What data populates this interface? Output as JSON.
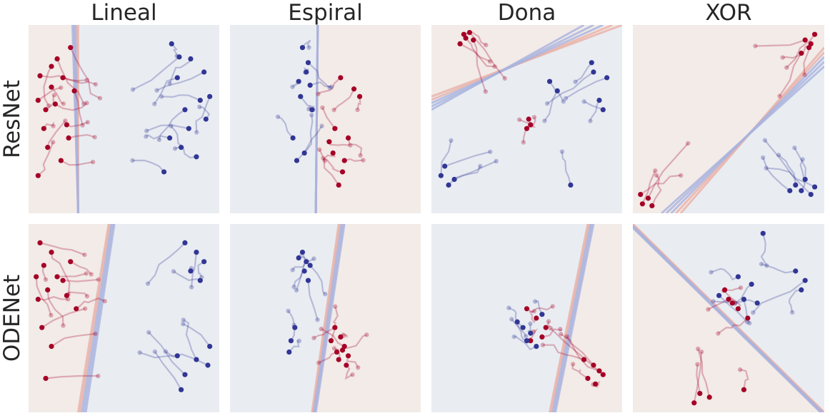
{
  "columns": [
    "Lineal",
    "Espiral",
    "Dona",
    "XOR"
  ],
  "rows": [
    "ResNet",
    "ODENet"
  ],
  "colors": {
    "class_red": "#a50026",
    "class_blue": "#313695",
    "region_red": "#f2ebe8",
    "region_blue": "#e9edf2",
    "boundary_red": "#e8b0a6",
    "boundary_blue": "#a9b3dd"
  },
  "chart_data": {
    "type": "scatter",
    "subtype": "small-multiples grid of 2-D decision regions with sample trajectories",
    "xlim": [
      0,
      1
    ],
    "ylim": [
      0,
      1
    ],
    "axes_visible": false,
    "grid": false,
    "panels": [
      {
        "row": "ResNet",
        "column": "Lineal",
        "boundary": [
          [
            0.26,
            1.0
          ],
          [
            0.26,
            0.0
          ],
          [
            0.23,
            1.0
          ],
          [
            0.26,
            0.0
          ]
        ],
        "red_points": [
          [
            0.15,
            0.82
          ],
          [
            0.22,
            0.88
          ],
          [
            0.05,
            0.6
          ],
          [
            0.12,
            0.67
          ],
          [
            0.08,
            0.45
          ],
          [
            0.18,
            0.72
          ],
          [
            0.1,
            0.35
          ],
          [
            0.14,
            0.58
          ],
          [
            0.2,
            0.47
          ],
          [
            0.05,
            0.2
          ],
          [
            0.17,
            0.28
          ],
          [
            0.24,
            0.65
          ],
          [
            0.12,
            0.78
          ],
          [
            0.09,
            0.55
          ],
          [
            0.21,
            0.4
          ],
          [
            0.06,
            0.73
          ]
        ],
        "blue_points": [
          [
            0.75,
            0.9
          ],
          [
            0.85,
            0.82
          ],
          [
            0.78,
            0.72
          ],
          [
            0.9,
            0.6
          ],
          [
            0.82,
            0.55
          ],
          [
            0.95,
            0.62
          ],
          [
            0.74,
            0.4
          ],
          [
            0.88,
            0.3
          ],
          [
            0.8,
            0.35
          ],
          [
            0.71,
            0.22
          ],
          [
            0.93,
            0.5
          ],
          [
            0.84,
            0.45
          ],
          [
            0.92,
            0.75
          ],
          [
            0.79,
            0.83
          ]
        ]
      },
      {
        "row": "ResNet",
        "column": "Espiral",
        "boundary": [
          [
            0.46,
            1.0
          ],
          [
            0.45,
            0.0
          ],
          [
            0.46,
            1.0
          ],
          [
            0.45,
            0.0
          ]
        ],
        "red_points": [
          [
            0.58,
            0.72
          ],
          [
            0.65,
            0.66
          ],
          [
            0.55,
            0.45
          ],
          [
            0.52,
            0.38
          ],
          [
            0.6,
            0.28
          ],
          [
            0.57,
            0.15
          ],
          [
            0.62,
            0.4
          ],
          [
            0.68,
            0.62
          ],
          [
            0.54,
            0.32
          ],
          [
            0.59,
            0.22
          ]
        ],
        "blue_points": [
          [
            0.38,
            0.88
          ],
          [
            0.4,
            0.75
          ],
          [
            0.42,
            0.68
          ],
          [
            0.37,
            0.62
          ],
          [
            0.43,
            0.55
          ],
          [
            0.33,
            0.4
          ],
          [
            0.39,
            0.32
          ],
          [
            0.35,
            0.28
          ],
          [
            0.41,
            0.8
          ],
          [
            0.36,
            0.7
          ]
        ]
      },
      {
        "row": "ResNet",
        "column": "Dona",
        "boundary": [
          [
            0.0,
            0.62
          ],
          [
            1.0,
            1.0
          ],
          [
            0.0,
            0.55
          ],
          [
            0.8,
            1.0
          ]
        ],
        "red_points": [
          [
            0.18,
            0.93
          ],
          [
            0.2,
            0.96
          ],
          [
            0.15,
            0.9
          ],
          [
            0.22,
            0.92
          ],
          [
            0.17,
            0.95
          ],
          [
            0.51,
            0.5
          ],
          [
            0.5,
            0.45
          ],
          [
            0.52,
            0.47
          ]
        ],
        "blue_points": [
          [
            0.07,
            0.25
          ],
          [
            0.12,
            0.18
          ],
          [
            0.05,
            0.2
          ],
          [
            0.09,
            0.15
          ],
          [
            0.85,
            0.75
          ],
          [
            0.92,
            0.72
          ],
          [
            0.88,
            0.6
          ],
          [
            0.9,
            0.55
          ],
          [
            0.84,
            0.8
          ],
          [
            0.62,
            0.7
          ],
          [
            0.66,
            0.65
          ],
          [
            0.73,
            0.15
          ]
        ]
      },
      {
        "row": "ResNet",
        "column": "XOR",
        "boundary": [
          [
            0.25,
            0.0
          ],
          [
            1.0,
            0.88
          ],
          [
            0.15,
            0.0
          ],
          [
            1.0,
            0.78
          ]
        ],
        "red_points": [
          [
            0.05,
            0.05
          ],
          [
            0.08,
            0.08
          ],
          [
            0.04,
            0.1
          ],
          [
            0.1,
            0.04
          ],
          [
            0.92,
            0.88
          ],
          [
            0.9,
            0.92
          ],
          [
            0.95,
            0.95
          ],
          [
            0.88,
            0.85
          ],
          [
            0.93,
            0.9
          ]
        ],
        "blue_points": [
          [
            0.85,
            0.15
          ],
          [
            0.88,
            0.12
          ],
          [
            0.9,
            0.18
          ],
          [
            0.93,
            0.1
          ],
          [
            0.95,
            0.14
          ],
          [
            0.82,
            0.12
          ]
        ]
      },
      {
        "row": "ODENet",
        "column": "Lineal",
        "boundary": [
          [
            0.42,
            1.0
          ],
          [
            0.26,
            0.0
          ],
          [
            0.45,
            1.0
          ],
          [
            0.3,
            0.0
          ]
        ],
        "red_points": [
          [
            0.06,
            0.9
          ],
          [
            0.12,
            0.85
          ],
          [
            0.08,
            0.78
          ],
          [
            0.15,
            0.72
          ],
          [
            0.05,
            0.6
          ],
          [
            0.1,
            0.65
          ],
          [
            0.18,
            0.7
          ],
          [
            0.07,
            0.45
          ],
          [
            0.12,
            0.35
          ],
          [
            0.22,
            0.8
          ],
          [
            0.2,
            0.62
          ],
          [
            0.04,
            0.72
          ],
          [
            0.25,
            0.55
          ],
          [
            0.09,
            0.18
          ]
        ],
        "blue_points": [
          [
            0.82,
            0.9
          ],
          [
            0.88,
            0.85
          ],
          [
            0.92,
            0.8
          ],
          [
            0.85,
            0.75
          ],
          [
            0.9,
            0.7
          ],
          [
            0.95,
            0.35
          ],
          [
            0.88,
            0.28
          ],
          [
            0.82,
            0.2
          ],
          [
            0.78,
            0.3
          ],
          [
            0.94,
            0.25
          ],
          [
            0.8,
            0.12
          ]
        ]
      },
      {
        "row": "ODENet",
        "column": "Espiral",
        "boundary": [
          [
            0.57,
            1.0
          ],
          [
            0.43,
            0.0
          ],
          [
            0.6,
            1.0
          ],
          [
            0.45,
            0.0
          ]
        ],
        "red_points": [
          [
            0.55,
            0.45
          ],
          [
            0.58,
            0.4
          ],
          [
            0.6,
            0.35
          ],
          [
            0.56,
            0.32
          ],
          [
            0.62,
            0.3
          ],
          [
            0.57,
            0.28
          ],
          [
            0.61,
            0.25
          ],
          [
            0.53,
            0.38
          ],
          [
            0.59,
            0.33
          ]
        ],
        "blue_points": [
          [
            0.38,
            0.85
          ],
          [
            0.4,
            0.8
          ],
          [
            0.42,
            0.78
          ],
          [
            0.36,
            0.82
          ],
          [
            0.39,
            0.75
          ],
          [
            0.34,
            0.45
          ],
          [
            0.32,
            0.38
          ],
          [
            0.31,
            0.32
          ],
          [
            0.41,
            0.7
          ]
        ]
      },
      {
        "row": "ODENet",
        "column": "Dona",
        "boundary": [
          [
            0.62,
            0.0
          ],
          [
            0.82,
            1.0
          ],
          [
            0.65,
            0.0
          ],
          [
            0.85,
            1.0
          ]
        ],
        "red_points": [
          [
            0.55,
            0.5
          ],
          [
            0.6,
            0.45
          ],
          [
            0.58,
            0.4
          ],
          [
            0.5,
            0.55
          ],
          [
            0.52,
            0.38
          ],
          [
            0.85,
            0.25
          ],
          [
            0.88,
            0.22
          ],
          [
            0.82,
            0.18
          ],
          [
            0.86,
            0.15
          ],
          [
            0.9,
            0.2
          ],
          [
            0.8,
            0.28
          ]
        ],
        "blue_points": [
          [
            0.48,
            0.45
          ],
          [
            0.52,
            0.42
          ],
          [
            0.45,
            0.48
          ],
          [
            0.55,
            0.35
          ],
          [
            0.58,
            0.52
          ],
          [
            0.5,
            0.38
          ]
        ]
      },
      {
        "row": "ODENet",
        "column": "XOR",
        "boundary": [
          [
            0.0,
            1.0
          ],
          [
            1.0,
            0.0
          ],
          [
            0.0,
            0.98
          ],
          [
            0.98,
            0.0
          ]
        ],
        "red_points": [
          [
            0.5,
            0.6
          ],
          [
            0.55,
            0.55
          ],
          [
            0.48,
            0.65
          ],
          [
            0.6,
            0.5
          ],
          [
            0.52,
            0.58
          ],
          [
            0.35,
            0.1
          ],
          [
            0.4,
            0.08
          ],
          [
            0.32,
            0.05
          ],
          [
            0.58,
            0.12
          ]
        ],
        "blue_points": [
          [
            0.68,
            0.95
          ],
          [
            0.55,
            0.72
          ],
          [
            0.62,
            0.68
          ],
          [
            0.85,
            0.75
          ],
          [
            0.9,
            0.7
          ],
          [
            0.88,
            0.65
          ],
          [
            0.58,
            0.6
          ],
          [
            0.45,
            0.62
          ],
          [
            0.65,
            0.58
          ]
        ]
      }
    ]
  }
}
